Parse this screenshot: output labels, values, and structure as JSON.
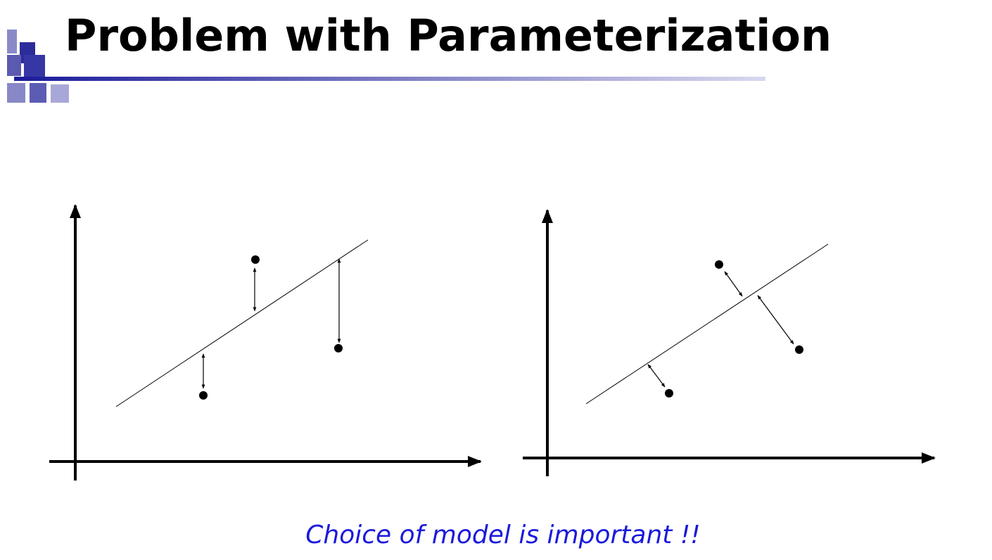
{
  "header": {
    "title": "Problem with Parameterization"
  },
  "caption": "Choice of model is important !!"
}
